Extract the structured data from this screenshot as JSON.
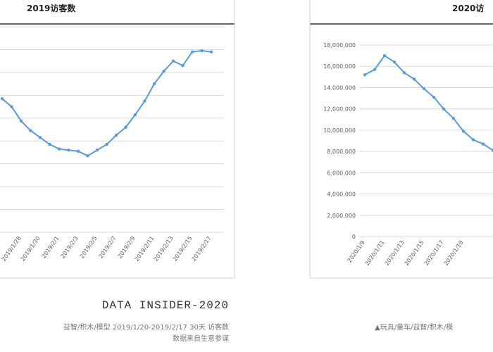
{
  "chart_data": [
    {
      "type": "line",
      "title": "2019访客数",
      "categories": [
        null,
        null,
        "2019/1/28",
        null,
        "2019/1/30",
        null,
        "2019/2/1",
        null,
        "2019/2/3",
        null,
        "2019/2/5",
        null,
        "2019/2/7",
        null,
        "2019/2/9",
        null,
        "2019/2/11",
        null,
        "2019/2/13",
        null,
        "2019/2/15",
        null,
        "2019/2/17"
      ],
      "series": [
        {
          "name": "2019访客数",
          "color": "#5b9bd5",
          "values": [
            11700000,
            11000000,
            9750000,
            8900000,
            8300000,
            7700000,
            7300000,
            7200000,
            7100000,
            6700000,
            7200000,
            7700000,
            8500000,
            9200000,
            10300000,
            11500000,
            13000000,
            14100000,
            15000000,
            14600000,
            15800000,
            15900000,
            15800000
          ]
        }
      ],
      "ylim": [
        0,
        18000000
      ],
      "grid": true,
      "footer": "DATA INSIDER-2020",
      "caption": [
        "益智/积木/模型 2019/1/20-2019/2/17 30天 访客数",
        "数据来自生意参谋"
      ]
    },
    {
      "type": "line",
      "title": "2020访",
      "categories": [
        "2020/1/9",
        null,
        "2020/1/11",
        null,
        "2020/1/13",
        null,
        "2020/1/15",
        null,
        "2020/1/17",
        null,
        "2020/1/19",
        null,
        null,
        null
      ],
      "series": [
        {
          "name": "2020访",
          "color": "#5b9bd5",
          "values": [
            15200000,
            15700000,
            17000000,
            16400000,
            15400000,
            14800000,
            13900000,
            13100000,
            12000000,
            11100000,
            9900000,
            9100000,
            8700000,
            8100000
          ]
        }
      ],
      "ylim": [
        0,
        18000000
      ],
      "yticks": [
        0,
        {
          "value": 2000000,
          "label": "2,000,000"
        },
        {
          "value": 4000000,
          "label": "4,000,000"
        },
        {
          "value": 6000000,
          "label": "6,000,000"
        },
        {
          "value": 8000000,
          "label": "8,000,000"
        },
        {
          "value": 10000000,
          "label": "10,000,000"
        },
        {
          "value": 12000000,
          "label": "12,000,000"
        },
        {
          "value": 14000000,
          "label": "14,000,000"
        },
        {
          "value": 16000000,
          "label": "16,000,000"
        },
        {
          "value": 18000000,
          "label": "18,000,000"
        }
      ],
      "grid": true,
      "caption": [
        "▲玩具/童车/益智/积木/模"
      ]
    }
  ]
}
